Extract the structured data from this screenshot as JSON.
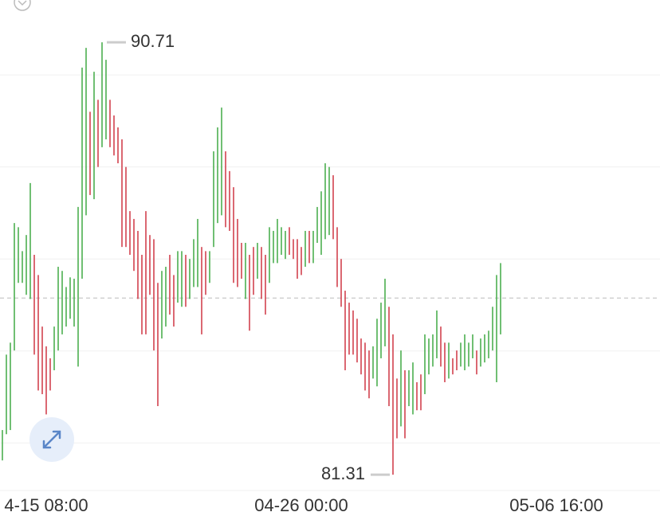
{
  "chart_data": {
    "type": "range-bar",
    "high": [
      82.28,
      83.92,
      84.18,
      86.78,
      86.69,
      86.17,
      86.52,
      87.65,
      86.09,
      85.65,
      84.53,
      84.1,
      83.84,
      84.53,
      85.83,
      85.74,
      85.39,
      85.6,
      85.57,
      87.13,
      90.16,
      90.59,
      89.2,
      90.07,
      89.46,
      90.71,
      90.33,
      89.46,
      89.12,
      88.86,
      88.6,
      88.0,
      87.04,
      86.87,
      86.61,
      86.09,
      87.04,
      86.52,
      86.43,
      85.48,
      85.74,
      85.83,
      86.09,
      85.65,
      86.17,
      86.17,
      86.09,
      86.0,
      86.43,
      86.87,
      86.26,
      86.17,
      86.17,
      88.34,
      88.86,
      89.29,
      88.34,
      87.91,
      87.56,
      86.87,
      86.35,
      86.35,
      86.09,
      86.26,
      86.35,
      86.26,
      86.09,
      86.69,
      86.61,
      86.87,
      86.69,
      86.61,
      86.69,
      86.43,
      86.43,
      86.26,
      86.61,
      86.61,
      86.61,
      87.13,
      87.47,
      88.08,
      88.0,
      87.82,
      86.69,
      86.0,
      85.31,
      85.05,
      84.88,
      84.7,
      84.27,
      84.18,
      84.01,
      84.1,
      84.7,
      85.05,
      85.57,
      84.96,
      84.36,
      83.4,
      84.01,
      83.58,
      83.58,
      83.75,
      83.32,
      83.49,
      84.36,
      84.27,
      84.36,
      84.88,
      84.53,
      84.18,
      84.18,
      83.84,
      84.01,
      84.18,
      84.36,
      84.18,
      84.36,
      84.01,
      84.27,
      84.36,
      84.44,
      84.96,
      85.65,
      85.91
    ],
    "low": [
      81.62,
      82.19,
      82.28,
      84.01,
      85.48,
      85.48,
      85.22,
      85.13,
      83.92,
      83.14,
      83.06,
      82.62,
      83.14,
      83.58,
      84.01,
      84.36,
      84.53,
      84.7,
      84.53,
      83.66,
      85.57,
      86.95,
      87.39,
      87.3,
      88.0,
      88.43,
      88.6,
      88.43,
      88.25,
      88.08,
      86.26,
      86.26,
      86.09,
      85.74,
      85.13,
      84.36,
      84.36,
      85.22,
      84.01,
      82.8,
      84.27,
      84.53,
      84.79,
      84.53,
      85.05,
      84.96,
      84.96,
      85.13,
      85.39,
      85.39,
      84.36,
      85.22,
      85.48,
      86.26,
      86.78,
      86.95,
      86.69,
      86.61,
      85.48,
      85.39,
      85.57,
      85.13,
      84.44,
      85.22,
      85.57,
      85.13,
      84.79,
      85.48,
      85.91,
      85.91,
      86.09,
      86.0,
      86.09,
      86.0,
      85.57,
      85.65,
      85.83,
      85.91,
      85.91,
      86.35,
      86.09,
      86.43,
      86.52,
      86.43,
      85.39,
      84.96,
      83.58,
      83.92,
      83.92,
      83.75,
      83.49,
      83.14,
      82.97,
      83.4,
      83.23,
      83.84,
      84.1,
      82.8,
      81.31,
      82.1,
      82.36,
      82.1,
      82.8,
      82.62,
      82.71,
      82.71,
      83.06,
      83.49,
      83.66,
      83.84,
      83.66,
      83.32,
      83.4,
      83.49,
      83.58,
      83.66,
      83.58,
      83.66,
      83.84,
      83.49,
      83.66,
      83.75,
      83.84,
      84.01,
      83.32,
      84.36
    ],
    "rising": [
      true,
      true,
      true,
      true,
      true,
      true,
      true,
      true,
      false,
      false,
      false,
      false,
      false,
      true,
      true,
      true,
      true,
      true,
      true,
      true,
      true,
      true,
      false,
      true,
      false,
      true,
      true,
      false,
      false,
      false,
      false,
      false,
      false,
      false,
      false,
      false,
      false,
      false,
      false,
      false,
      true,
      true,
      false,
      false,
      true,
      true,
      false,
      true,
      true,
      true,
      false,
      false,
      true,
      true,
      true,
      true,
      false,
      false,
      false,
      false,
      false,
      true,
      false,
      false,
      true,
      false,
      false,
      true,
      true,
      true,
      true,
      true,
      false,
      false,
      false,
      false,
      true,
      false,
      true,
      true,
      true,
      true,
      true,
      false,
      false,
      false,
      false,
      false,
      false,
      false,
      false,
      false,
      false,
      true,
      true,
      true,
      true,
      false,
      false,
      false,
      true,
      false,
      true,
      true,
      false,
      false,
      true,
      true,
      true,
      true,
      false,
      false,
      true,
      false,
      false,
      true,
      true,
      true,
      true,
      false,
      true,
      true,
      true,
      true,
      true,
      true
    ],
    "up_color": "#4caf50",
    "down_color": "#d2424f",
    "ylim": [
      81.0,
      91.63
    ],
    "xlim": [
      -0.6,
      165
    ],
    "yticks": [
      82,
      84,
      86,
      88,
      90
    ],
    "grid": true,
    "last_price": 85.15,
    "x_labels": [
      {
        "index": 11,
        "label": "4-15 08:00"
      },
      {
        "index": 75,
        "label": "04-26 00:00"
      },
      {
        "index": 139,
        "label": "05-06 16:00"
      }
    ],
    "annotations": [
      {
        "index": 25,
        "value": 90.71,
        "side": "high"
      },
      {
        "index": 98,
        "value": 81.31,
        "side": "low"
      }
    ]
  }
}
